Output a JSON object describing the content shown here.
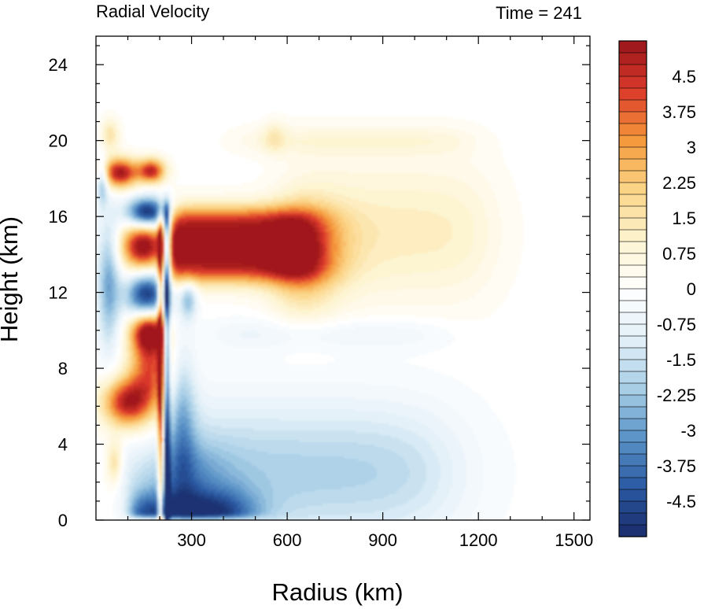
{
  "chart_data": {
    "type": "heatmap",
    "title_left": "Radial Velocity",
    "title_right": "Time = 241",
    "xlabel": "Radius (km)",
    "ylabel": "Height (km)",
    "xlim": [
      0,
      1550
    ],
    "ylim": [
      0,
      25.5
    ],
    "xticks": [
      300,
      600,
      900,
      1200,
      1500
    ],
    "xtick_labels": [
      "300",
      "600",
      "900",
      "1200",
      "1500"
    ],
    "yticks": [
      0,
      4,
      8,
      12,
      16,
      20,
      24
    ],
    "ytick_labels": [
      "0",
      "4",
      "8",
      "12",
      "16",
      "20",
      "24"
    ],
    "colorbar": {
      "min": -5.25,
      "max": 5.25,
      "step": 0.25,
      "labels": [
        "4.5",
        "3.75",
        "3",
        "2.25",
        "1.5",
        "0.75",
        "0",
        "-0.75",
        "-1.5",
        "-2.25",
        "-3",
        "-3.75",
        "-4.5"
      ],
      "label_values": [
        4.5,
        3.75,
        3,
        2.25,
        1.5,
        0.75,
        0,
        -0.75,
        -1.5,
        -2.25,
        -3,
        -3.75,
        -4.5
      ],
      "colormap": [
        "#1a2c6b",
        "#2b5aa3",
        "#5b94c8",
        "#a9cfe6",
        "#e3f0f8",
        "#ffffff",
        "#fdf3cf",
        "#fbd486",
        "#f59a3c",
        "#dc3a2a",
        "#98151b"
      ]
    },
    "features": [
      {
        "name": "upper outflow jet",
        "r": [
          240,
          720
        ],
        "z": [
          12.6,
          16.4
        ],
        "v": 5.0
      },
      {
        "name": "eyewall band",
        "r": [
          205,
          245
        ],
        "z": [
          0,
          16.5
        ],
        "v": -3.0
      },
      {
        "name": "upper outflow layer",
        "r": [
          650,
          1250
        ],
        "z": [
          11,
          20.5
        ],
        "v": 0.8
      },
      {
        "name": "low-level inflow",
        "r": [
          60,
          550
        ],
        "z": [
          0,
          3
        ],
        "v": -3.5
      }
    ]
  }
}
